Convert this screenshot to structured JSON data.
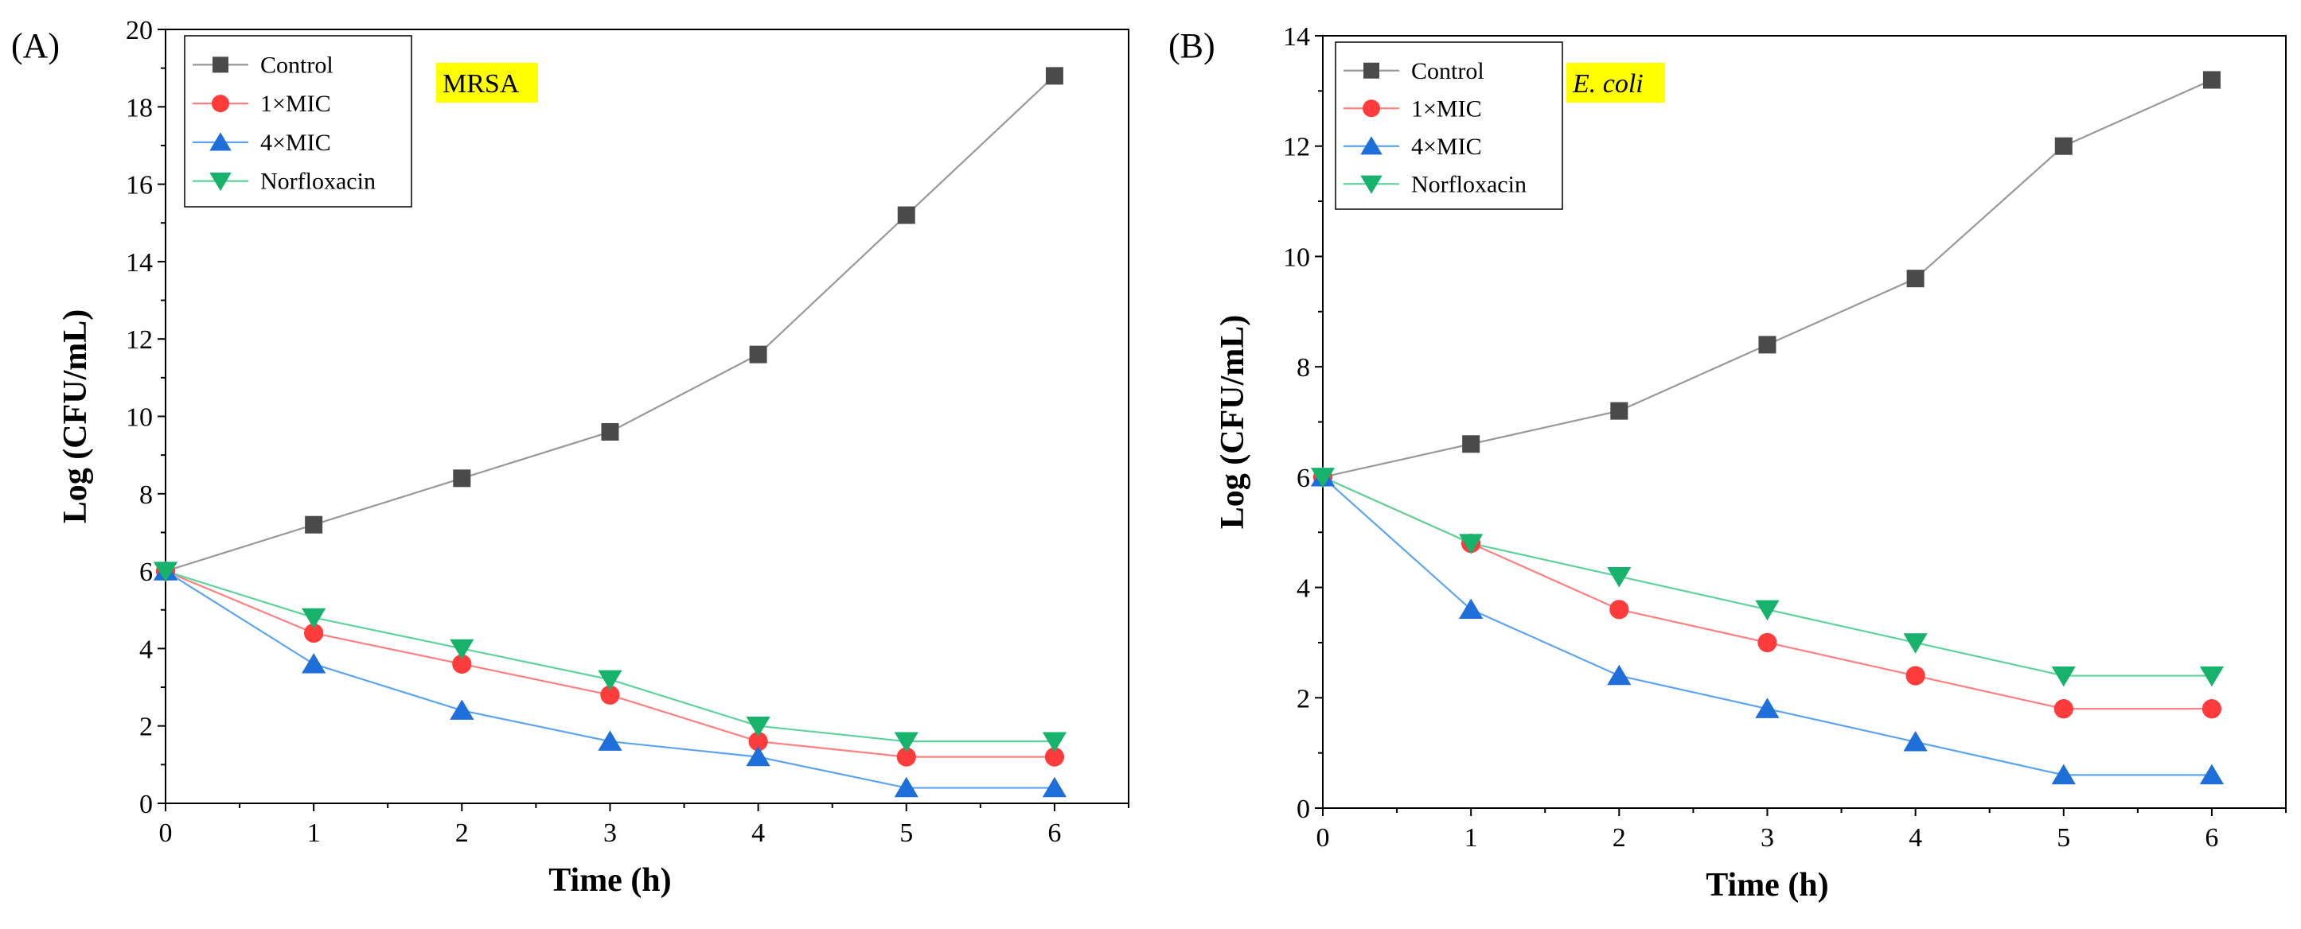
{
  "chart_data": [
    {
      "type": "line",
      "panel_label": "(A)",
      "organism_tag": "MRSA",
      "tag_italic": false,
      "xlabel": "Time (h)",
      "ylabel": "Log (CFU/mL)",
      "x": [
        0,
        1,
        2,
        3,
        4,
        5,
        6
      ],
      "xlim": [
        0,
        6.5
      ],
      "ylim": [
        0,
        20
      ],
      "yticks": [
        0,
        2,
        4,
        6,
        8,
        10,
        12,
        14,
        16,
        18,
        20
      ],
      "xticks": [
        0,
        1,
        2,
        3,
        4,
        5,
        6
      ],
      "legend_position": "top-left",
      "series": [
        {
          "name": "Control",
          "values": [
            6,
            7.2,
            8.4,
            9.6,
            11.6,
            15.2,
            18.8
          ],
          "marker": "square",
          "color": "#4a4a4a",
          "line_color": "#999999"
        },
        {
          "name": "1×MIC",
          "values": [
            6,
            4.4,
            3.6,
            2.8,
            1.6,
            1.2,
            1.2
          ],
          "marker": "circle",
          "color": "#ff3b3b",
          "line_color": "#ff8080"
        },
        {
          "name": "4×MIC",
          "values": [
            6,
            3.6,
            2.4,
            1.6,
            1.2,
            0.4,
            0.4
          ],
          "marker": "triangle-up",
          "color": "#1e6fd9",
          "line_color": "#5da4f0"
        },
        {
          "name": "Norfloxacin",
          "values": [
            6,
            4.8,
            4.0,
            3.2,
            2.0,
            1.6,
            1.6
          ],
          "marker": "triangle-down",
          "color": "#17b26b",
          "line_color": "#5fd39b"
        }
      ]
    },
    {
      "type": "line",
      "panel_label": "(B)",
      "organism_tag": "E. coli",
      "tag_italic": true,
      "xlabel": "Time (h)",
      "ylabel": "Log (CFU/mL)",
      "x": [
        0,
        1,
        2,
        3,
        4,
        5,
        6
      ],
      "xlim": [
        0,
        6.5
      ],
      "ylim": [
        0,
        14
      ],
      "yticks": [
        0,
        2,
        4,
        6,
        8,
        10,
        12,
        14
      ],
      "xticks": [
        0,
        1,
        2,
        3,
        4,
        5,
        6
      ],
      "legend_position": "top-left",
      "series": [
        {
          "name": "Control",
          "values": [
            6,
            6.6,
            7.2,
            8.4,
            9.6,
            12.0,
            13.2
          ],
          "marker": "square",
          "color": "#4a4a4a",
          "line_color": "#999999"
        },
        {
          "name": "1×MIC",
          "values": [
            6,
            4.8,
            3.6,
            3.0,
            2.4,
            1.8,
            1.8
          ],
          "marker": "circle",
          "color": "#ff3b3b",
          "line_color": "#ff8080"
        },
        {
          "name": "4×MIC",
          "values": [
            6,
            3.6,
            2.4,
            1.8,
            1.2,
            0.6,
            0.6
          ],
          "marker": "triangle-up",
          "color": "#1e6fd9",
          "line_color": "#5da4f0"
        },
        {
          "name": "Norfloxacin",
          "values": [
            6,
            4.8,
            4.2,
            3.6,
            3.0,
            2.4,
            2.4
          ],
          "marker": "triangle-down",
          "color": "#17b26b",
          "line_color": "#5fd39b"
        }
      ]
    }
  ],
  "tag_highlight_color": "#ffff00"
}
